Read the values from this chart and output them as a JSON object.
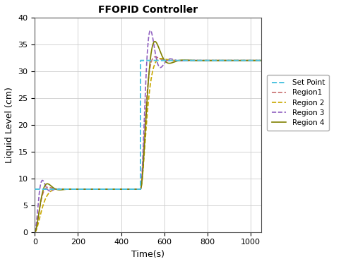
{
  "title": "FFOPID Controller",
  "xlabel": "Time(s)",
  "ylabel": "Liquid Level (cm)",
  "xlim": [
    0,
    1050
  ],
  "ylim": [
    0,
    40
  ],
  "xticks": [
    0,
    200,
    400,
    600,
    800,
    1000
  ],
  "yticks": [
    0,
    5,
    10,
    15,
    20,
    25,
    30,
    35,
    40
  ],
  "sp_color": "#4DC3E0",
  "region1_color": "#C87070",
  "region2_color": "#C8A800",
  "region3_color": "#9060C0",
  "region4_color": "#808000",
  "setpoint_level1": 8.0,
  "setpoint_level2": 32.0,
  "step_time": 490,
  "bg_color": "#ffffff"
}
